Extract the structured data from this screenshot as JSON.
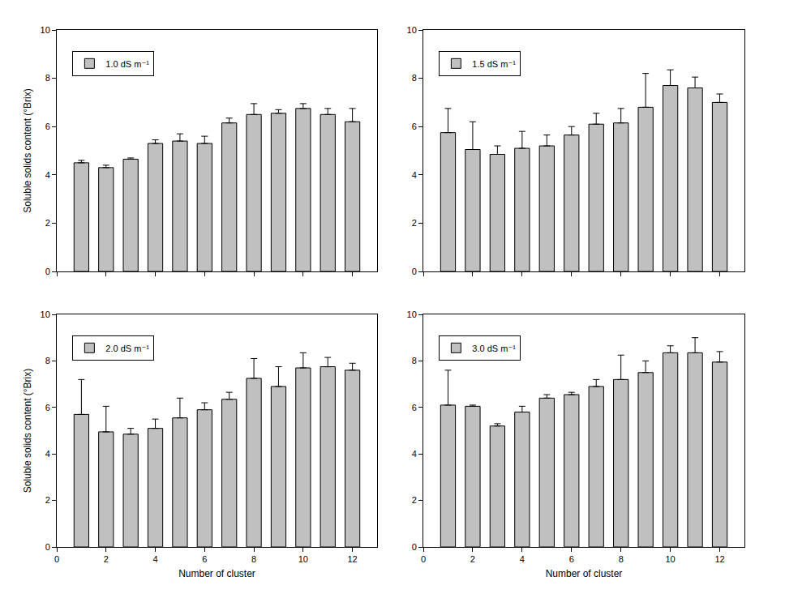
{
  "chart_data": [
    {
      "type": "bar",
      "x": [
        1,
        2,
        3,
        4,
        5,
        6,
        7,
        8,
        9,
        10,
        11,
        12
      ],
      "series": [
        {
          "name": "1.0 dS m⁻¹",
          "color": "#c0c0c0",
          "values": [
            4.5,
            4.3,
            4.65,
            5.3,
            5.4,
            5.3,
            6.15,
            6.5,
            6.55,
            6.75,
            6.5,
            6.2
          ],
          "errors": [
            0.1,
            0.1,
            0.05,
            0.15,
            0.3,
            0.3,
            0.2,
            0.45,
            0.15,
            0.2,
            0.25,
            0.55
          ]
        }
      ],
      "y_label": "Soluble solids content (°Brix)",
      "xlim": [
        0,
        13
      ],
      "xticks": [
        0,
        2,
        4,
        6,
        8,
        10,
        12
      ],
      "ylim": [
        0,
        10
      ],
      "yticks": [
        0,
        2,
        4,
        6,
        8,
        10
      ],
      "legend": "top left",
      "tick_labels": "y"
    },
    {
      "type": "bar",
      "x": [
        1,
        2,
        3,
        4,
        5,
        6,
        7,
        8,
        9,
        10,
        11,
        12
      ],
      "series": [
        {
          "name": "1.5 dS m⁻¹",
          "color": "#c0c0c0",
          "values": [
            5.75,
            5.05,
            4.85,
            5.1,
            5.2,
            5.65,
            6.1,
            6.15,
            6.8,
            7.7,
            7.6,
            7.0
          ],
          "errors": [
            1.0,
            1.15,
            0.35,
            0.7,
            0.45,
            0.35,
            0.45,
            0.6,
            1.4,
            0.65,
            0.45,
            0.35
          ]
        }
      ],
      "xlim": [
        0,
        13
      ],
      "xticks": [
        0,
        2,
        4,
        6,
        8,
        10,
        12
      ],
      "ylim": [
        0,
        10
      ],
      "yticks": [
        0,
        2,
        4,
        6,
        8,
        10
      ],
      "legend": "top left",
      "tick_labels": "y"
    },
    {
      "type": "bar",
      "x": [
        1,
        2,
        3,
        4,
        5,
        6,
        7,
        8,
        9,
        10,
        11,
        12
      ],
      "series": [
        {
          "name": "2.0 dS m⁻¹",
          "color": "#c0c0c0",
          "values": [
            5.7,
            4.95,
            4.85,
            5.1,
            5.55,
            5.9,
            6.35,
            7.25,
            6.9,
            7.7,
            7.75,
            7.6
          ],
          "errors": [
            1.5,
            1.1,
            0.25,
            0.4,
            0.85,
            0.3,
            0.3,
            0.85,
            0.85,
            0.65,
            0.4,
            0.3
          ]
        }
      ],
      "x_label": "Number of cluster",
      "y_label": "Soluble solids content (°Brix)",
      "xlim": [
        0,
        13
      ],
      "xticks": [
        0,
        2,
        4,
        6,
        8,
        10,
        12
      ],
      "ylim": [
        0,
        10
      ],
      "yticks": [
        0,
        2,
        4,
        6,
        8,
        10
      ],
      "legend": "top left"
    },
    {
      "type": "bar",
      "x": [
        1,
        2,
        3,
        4,
        5,
        6,
        7,
        8,
        9,
        10,
        11,
        12
      ],
      "series": [
        {
          "name": "3.0 dS m⁻¹",
          "color": "#c0c0c0",
          "values": [
            6.1,
            6.05,
            5.2,
            5.8,
            6.4,
            6.55,
            6.9,
            7.2,
            7.5,
            8.35,
            8.35,
            7.95
          ],
          "errors": [
            1.5,
            0.05,
            0.1,
            0.25,
            0.15,
            0.1,
            0.3,
            1.05,
            0.5,
            0.3,
            0.65,
            0.45
          ]
        }
      ],
      "x_label": "Number of cluster",
      "xlim": [
        0,
        13
      ],
      "xticks": [
        0,
        2,
        4,
        6,
        8,
        10,
        12
      ],
      "ylim": [
        0,
        10
      ],
      "yticks": [
        0,
        2,
        4,
        6,
        8,
        10
      ],
      "legend": "top left"
    }
  ]
}
